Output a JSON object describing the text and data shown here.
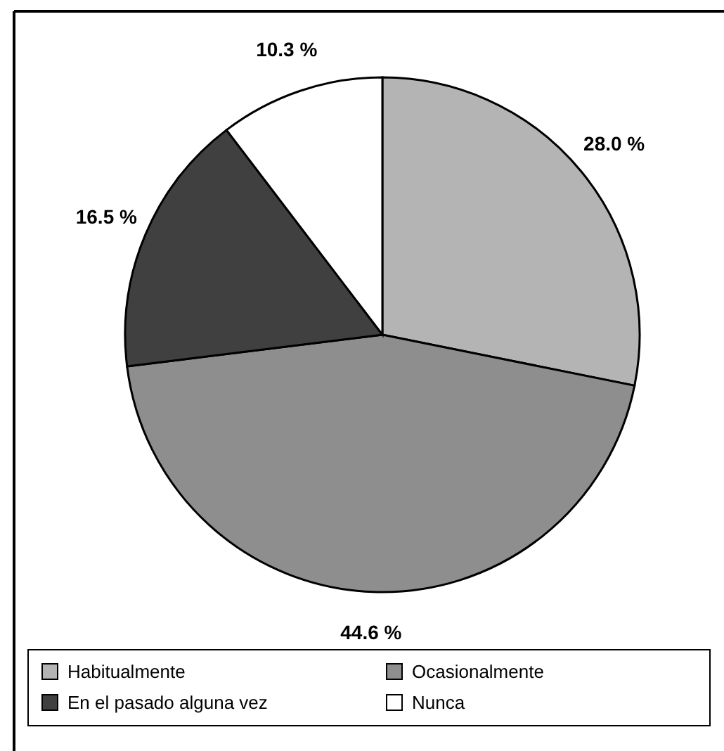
{
  "chart_data": {
    "type": "pie",
    "categories": [
      "Habitualmente",
      "Ocasionalmente",
      "En el pasado alguna vez",
      "Nunca"
    ],
    "values": [
      28.0,
      44.6,
      16.5,
      10.3
    ],
    "colors": [
      "#b4b4b4",
      "#8e8e8e",
      "#404040",
      "#ffffff"
    ],
    "value_labels": [
      "28.0 %",
      "44.6 %",
      "16.5 %",
      "10.3 %"
    ],
    "legend": "bottom"
  }
}
